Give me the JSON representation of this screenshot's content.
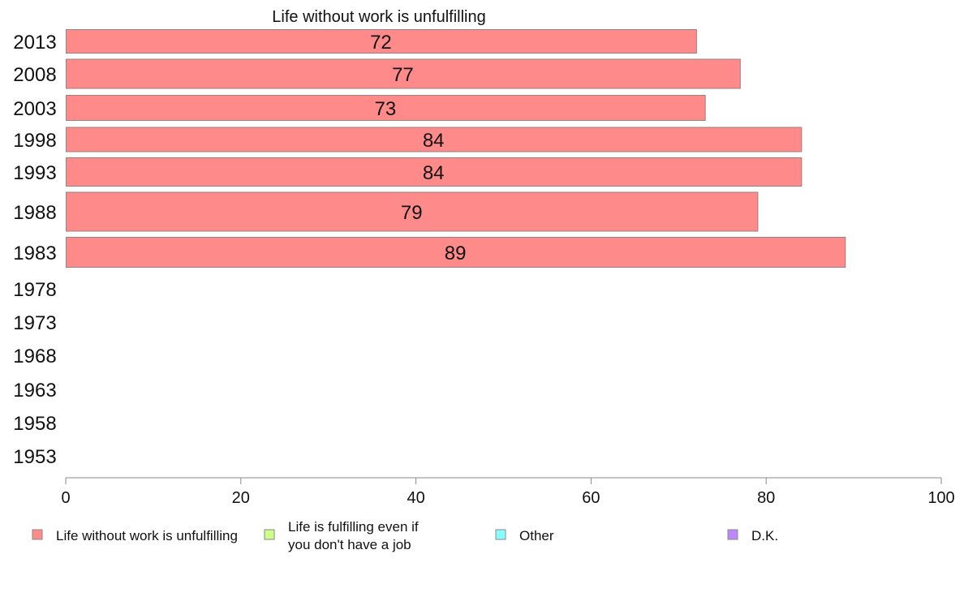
{
  "chart_data": {
    "type": "bar",
    "orientation": "horizontal",
    "title": "Life without work is unfulfilling",
    "categories": [
      "2013",
      "2008",
      "2003",
      "1998",
      "1993",
      "1988",
      "1983",
      "1978",
      "1973",
      "1968",
      "1963",
      "1958",
      "1953"
    ],
    "series": [
      {
        "name": "Life without work is unfulfilling",
        "color": "#ff8a8a",
        "values": [
          72,
          77,
          73,
          84,
          84,
          79,
          89,
          null,
          null,
          null,
          null,
          null,
          null
        ]
      }
    ],
    "xlim": [
      0,
      100
    ],
    "xticks": [
      0,
      20,
      40,
      60,
      80,
      100
    ],
    "grid": false,
    "legend": {
      "placement": "bottom",
      "items": [
        {
          "lines": [
            "Life without work is unfulfilling"
          ],
          "color": "#ff8a8a"
        },
        {
          "lines": [
            "Life is fulfilling even if",
            "you don't have a job"
          ],
          "color": "#ccff88"
        },
        {
          "lines": [
            "Other"
          ],
          "color": "#88ffff"
        },
        {
          "lines": [
            "D.K."
          ],
          "color": "#bb88ff"
        }
      ]
    }
  }
}
